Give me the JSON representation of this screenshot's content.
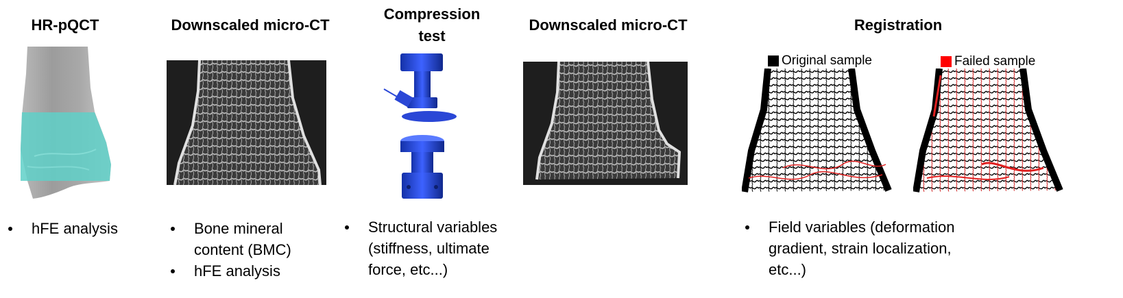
{
  "columns": [
    {
      "title": "HR-pQCT",
      "bullets": [
        "hFE analysis"
      ]
    },
    {
      "title": "Downscaled micro-CT",
      "bullets": [
        "Bone mineral content (BMC)",
        "hFE analysis"
      ]
    },
    {
      "title_line1": "Compression",
      "title_line2": "test",
      "bullets": [
        "Structural variables (stiffness, ultimate force, etc...)"
      ]
    },
    {
      "title": "Downscaled micro-CT",
      "bullets": []
    },
    {
      "title": "Registration",
      "bullets": [
        "Field variables (deformation gradient, strain localization, etc...)"
      ]
    }
  ],
  "legend": {
    "original": {
      "label": "Original sample",
      "color": "#000000"
    },
    "failed": {
      "label": "Failed sample",
      "color": "#ff0000"
    }
  },
  "colors": {
    "highlight": "#5fd0c8",
    "ct_background": "#1e1e1e",
    "machine_blue": "#2a47d6"
  }
}
